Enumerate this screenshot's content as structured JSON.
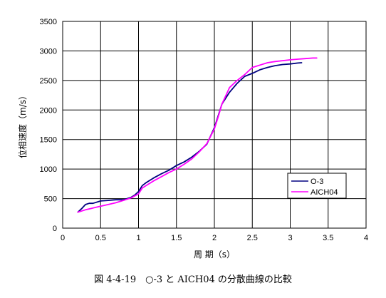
{
  "caption": "図 4-4-19　○-3 と AICH04 の分散曲線の比較",
  "chart_data": {
    "type": "line",
    "xlabel": "周 期（s）",
    "ylabel": "位相速度（m/s）",
    "xlim": [
      0,
      4
    ],
    "ylim": [
      0,
      3500
    ],
    "x_ticks": [
      "0",
      "0.5",
      "1",
      "1.5",
      "2",
      "2.5",
      "3",
      "3.5",
      "4"
    ],
    "y_ticks": [
      "0",
      "500",
      "1000",
      "1500",
      "2000",
      "2500",
      "3000",
      "3500"
    ],
    "grid": true,
    "legend_position": "right",
    "series": [
      {
        "name": "O-3",
        "color": "#000080",
        "points": [
          [
            0.2,
            270
          ],
          [
            0.25,
            330
          ],
          [
            0.3,
            400
          ],
          [
            0.35,
            420
          ],
          [
            0.4,
            420
          ],
          [
            0.5,
            460
          ],
          [
            0.6,
            470
          ],
          [
            0.7,
            480
          ],
          [
            0.8,
            480
          ],
          [
            0.9,
            520
          ],
          [
            0.95,
            560
          ],
          [
            1.0,
            620
          ],
          [
            1.05,
            720
          ],
          [
            1.1,
            770
          ],
          [
            1.2,
            850
          ],
          [
            1.3,
            920
          ],
          [
            1.4,
            980
          ],
          [
            1.5,
            1060
          ],
          [
            1.6,
            1120
          ],
          [
            1.7,
            1200
          ],
          [
            1.8,
            1300
          ],
          [
            1.9,
            1420
          ],
          [
            2.0,
            1700
          ],
          [
            2.05,
            1900
          ],
          [
            2.1,
            2100
          ],
          [
            2.2,
            2300
          ],
          [
            2.3,
            2450
          ],
          [
            2.4,
            2570
          ],
          [
            2.5,
            2620
          ],
          [
            2.6,
            2680
          ],
          [
            2.7,
            2720
          ],
          [
            2.8,
            2750
          ],
          [
            2.9,
            2770
          ],
          [
            3.0,
            2780
          ],
          [
            3.1,
            2795
          ],
          [
            3.15,
            2800
          ]
        ]
      },
      {
        "name": "AICH04",
        "color": "#ff00ff",
        "points": [
          [
            0.2,
            270
          ],
          [
            0.3,
            310
          ],
          [
            0.4,
            340
          ],
          [
            0.5,
            370
          ],
          [
            0.6,
            400
          ],
          [
            0.7,
            430
          ],
          [
            0.8,
            470
          ],
          [
            0.9,
            510
          ],
          [
            1.0,
            580
          ],
          [
            1.05,
            680
          ],
          [
            1.1,
            720
          ],
          [
            1.2,
            800
          ],
          [
            1.3,
            870
          ],
          [
            1.4,
            940
          ],
          [
            1.5,
            1000
          ],
          [
            1.6,
            1080
          ],
          [
            1.7,
            1170
          ],
          [
            1.8,
            1290
          ],
          [
            1.9,
            1430
          ],
          [
            2.0,
            1680
          ],
          [
            2.05,
            1880
          ],
          [
            2.1,
            2100
          ],
          [
            2.2,
            2380
          ],
          [
            2.3,
            2500
          ],
          [
            2.4,
            2600
          ],
          [
            2.5,
            2720
          ],
          [
            2.6,
            2760
          ],
          [
            2.7,
            2800
          ],
          [
            2.8,
            2820
          ],
          [
            2.9,
            2835
          ],
          [
            3.0,
            2850
          ],
          [
            3.1,
            2860
          ],
          [
            3.2,
            2870
          ],
          [
            3.3,
            2880
          ],
          [
            3.35,
            2880
          ]
        ]
      }
    ]
  }
}
